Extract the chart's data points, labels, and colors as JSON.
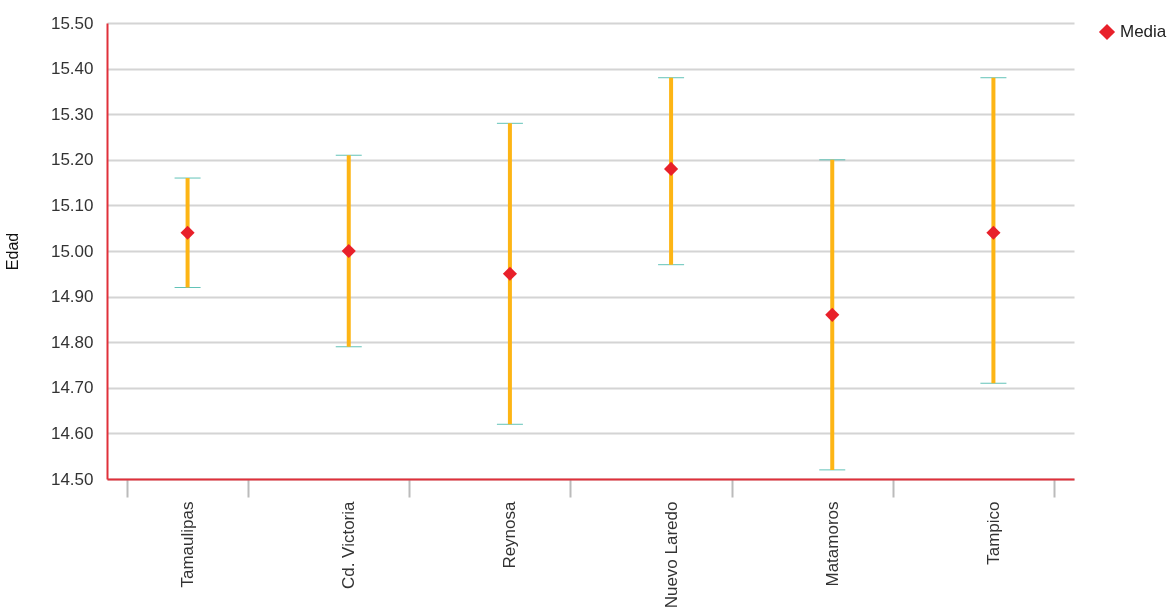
{
  "chart_data": {
    "type": "scatter",
    "ylabel": "Edad",
    "categories": [
      "Tamaulipas",
      "Cd. Victoria",
      "Reynosa",
      "Nuevo Laredo",
      "Matamoros",
      "Tampico"
    ],
    "series": [
      {
        "name": "Media",
        "color": "#e8202a",
        "values": [
          15.04,
          15.0,
          14.95,
          15.18,
          14.86,
          15.04
        ],
        "errors": [
          [
            14.92,
            15.16
          ],
          [
            14.79,
            15.21
          ],
          [
            14.62,
            15.28
          ],
          [
            14.97,
            15.38
          ],
          [
            14.52,
            15.2
          ],
          [
            14.71,
            15.38
          ]
        ]
      }
    ],
    "ylim": [
      14.5,
      15.5
    ],
    "yticks": [
      {
        "value": 14.5,
        "label": "14.50"
      },
      {
        "value": 14.6,
        "label": "14.60"
      },
      {
        "value": 14.7,
        "label": "14.70"
      },
      {
        "value": 14.8,
        "label": "14.80"
      },
      {
        "value": 14.9,
        "label": "14.90"
      },
      {
        "value": 15.0,
        "label": "15.00"
      },
      {
        "value": 15.1,
        "label": "15.10"
      },
      {
        "value": 15.2,
        "label": "15.20"
      },
      {
        "value": 15.3,
        "label": "15.30"
      },
      {
        "value": 15.4,
        "label": "15.40"
      },
      {
        "value": 15.5,
        "label": "15.50"
      }
    ],
    "grid": "y",
    "legend": "top right",
    "marker": "diamond"
  }
}
